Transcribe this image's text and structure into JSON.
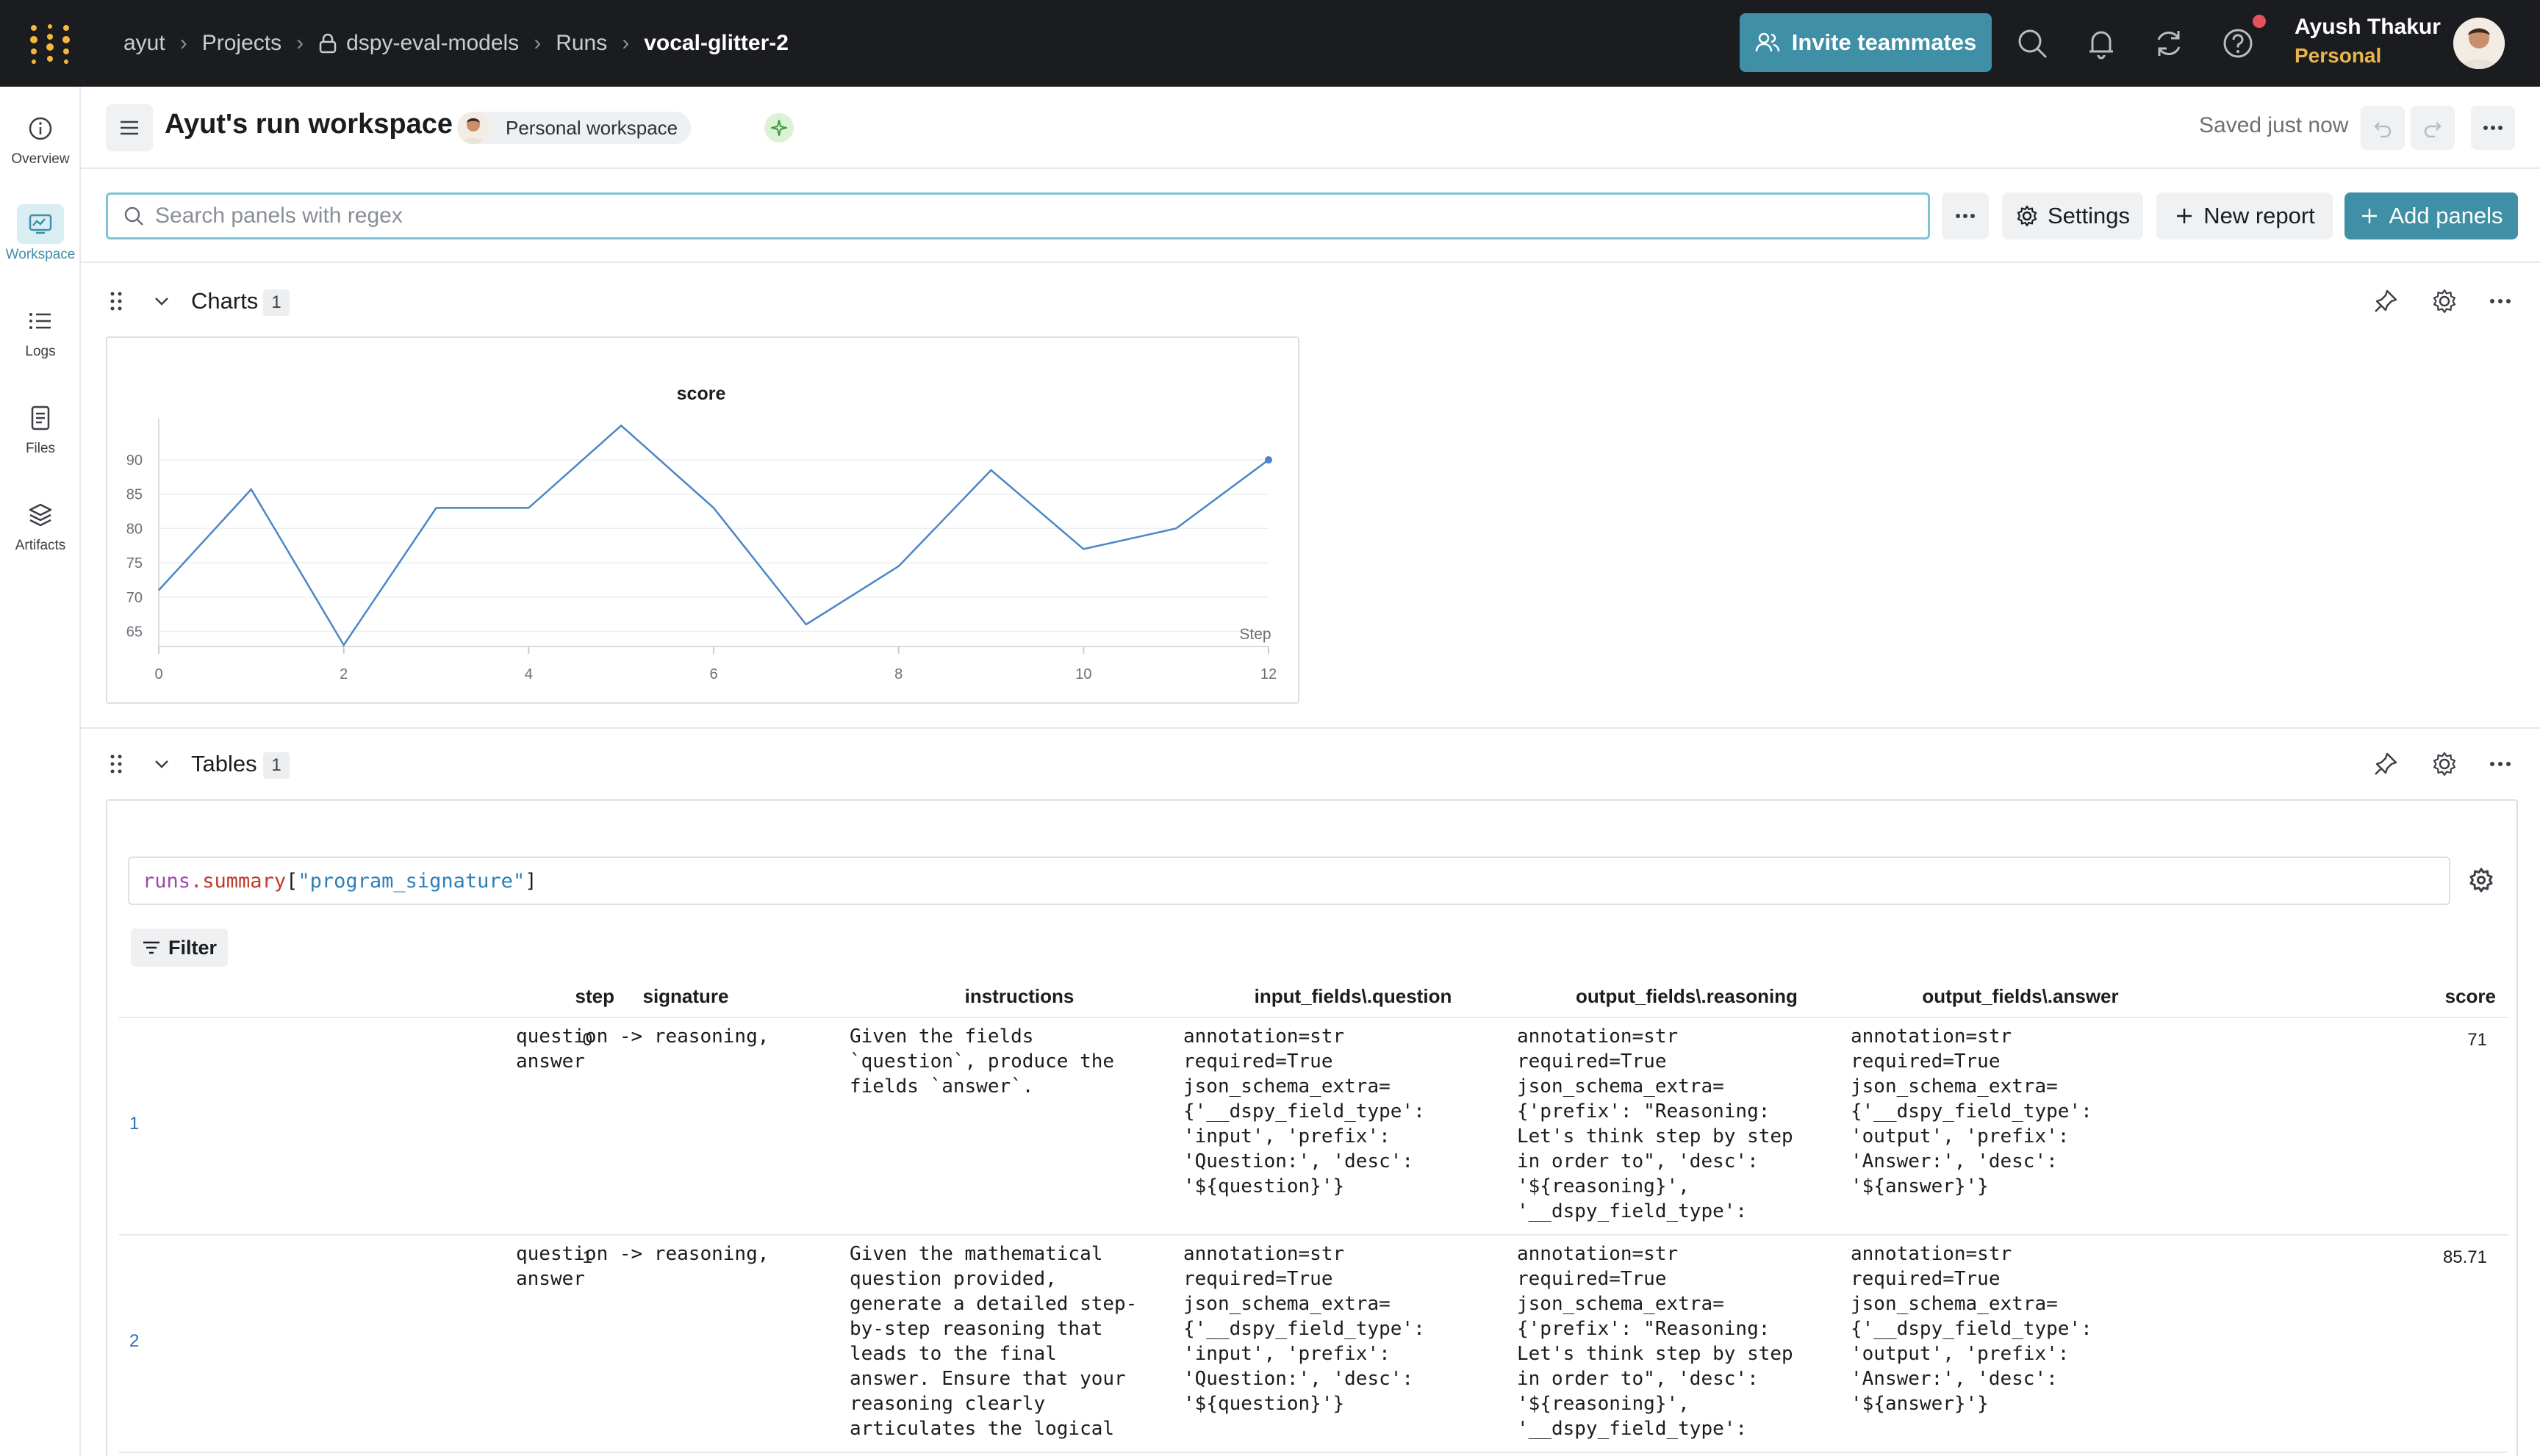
{
  "topbar": {
    "breadcrumbs": [
      "ayut",
      "Projects",
      "dspy-eval-models",
      "Runs",
      "vocal-glitter-2"
    ],
    "invite_label": "Invite teammates",
    "user_name": "Ayush Thakur",
    "user_plan": "Personal",
    "colors": {
      "background": "#1a1c1f",
      "accent": "#3f8fa6",
      "plan": "#e8b64d",
      "notification": "#e8505b"
    }
  },
  "leftrail": {
    "items": [
      {
        "label": "Overview",
        "icon": "info-icon"
      },
      {
        "label": "Workspace",
        "icon": "workspace-icon",
        "active": true
      },
      {
        "label": "Logs",
        "icon": "list-icon"
      },
      {
        "label": "Files",
        "icon": "file-icon"
      },
      {
        "label": "Artifacts",
        "icon": "layers-icon"
      }
    ]
  },
  "workspace": {
    "title": "Ayut's run workspace",
    "tag": "Personal workspace",
    "saved_status": "Saved just now"
  },
  "search": {
    "placeholder": "Search panels with regex",
    "settings_label": "Settings",
    "new_report_label": "New report",
    "add_panels_label": "Add panels"
  },
  "sections": {
    "charts": {
      "title": "Charts",
      "count": "1"
    },
    "tables": {
      "title": "Tables",
      "count": "1"
    }
  },
  "chart_data": {
    "type": "line",
    "title": "score",
    "xlabel": "Step",
    "ylabel": "",
    "x": [
      0,
      1,
      2,
      3,
      4,
      5,
      6,
      7,
      8,
      9,
      10,
      11,
      12
    ],
    "values": [
      71,
      85.71,
      63,
      83,
      83,
      95,
      83,
      66,
      74.5,
      88.5,
      77,
      80,
      90
    ],
    "xticks": [
      "0",
      "2",
      "4",
      "6",
      "8",
      "10",
      "12"
    ],
    "yticks": [
      "65",
      "70",
      "75",
      "80",
      "85",
      "90"
    ],
    "xlim": [
      0,
      12
    ],
    "ylim": [
      62.8,
      96
    ],
    "grid": true,
    "line_color": "#4a86c8"
  },
  "table": {
    "expression": {
      "a": "runs",
      "b": ".summary",
      "c": "[",
      "d": "\"program_signature\"",
      "e": "]"
    },
    "filter_label": "Filter",
    "columns": [
      "step",
      "signature",
      "instructions",
      "input_fields\\.question",
      "output_fields\\.reasoning",
      "output_fields\\.answer",
      "score"
    ],
    "rows": [
      {
        "index": "1",
        "step": "0",
        "signature": "question -> reasoning,\nanswer",
        "instructions": "Given the fields\n`question`, produce the\nfields `answer`.",
        "input_question": "annotation=str\nrequired=True\njson_schema_extra=\n{'__dspy_field_type':\n'input', 'prefix':\n'Question:', 'desc':\n'${question}'}",
        "output_reasoning": "annotation=str\nrequired=True\njson_schema_extra=\n{'prefix': \"Reasoning:\nLet's think step by step\nin order to\", 'desc':\n'${reasoning}',\n'__dspy_field_type':",
        "output_answer": "annotation=str\nrequired=True\njson_schema_extra=\n{'__dspy_field_type':\n'output', 'prefix':\n'Answer:', 'desc':\n'${answer}'}",
        "score": "71"
      },
      {
        "index": "2",
        "step": "1",
        "signature": "question -> reasoning,\nanswer",
        "instructions": "Given the mathematical\nquestion provided,\ngenerate a detailed step-\nby-step reasoning that\nleads to the final\nanswer. Ensure that your\nreasoning clearly\narticulates the logical",
        "input_question": "annotation=str\nrequired=True\njson_schema_extra=\n{'__dspy_field_type':\n'input', 'prefix':\n'Question:', 'desc':\n'${question}'}",
        "output_reasoning": "annotation=str\nrequired=True\njson_schema_extra=\n{'prefix': \"Reasoning:\nLet's think step by step\nin order to\", 'desc':\n'${reasoning}',\n'__dspy_field_type':",
        "output_answer": "annotation=str\nrequired=True\njson_schema_extra=\n{'__dspy_field_type':\n'output', 'prefix':\n'Answer:', 'desc':\n'${answer}'}",
        "score": "85.71"
      }
    ]
  }
}
